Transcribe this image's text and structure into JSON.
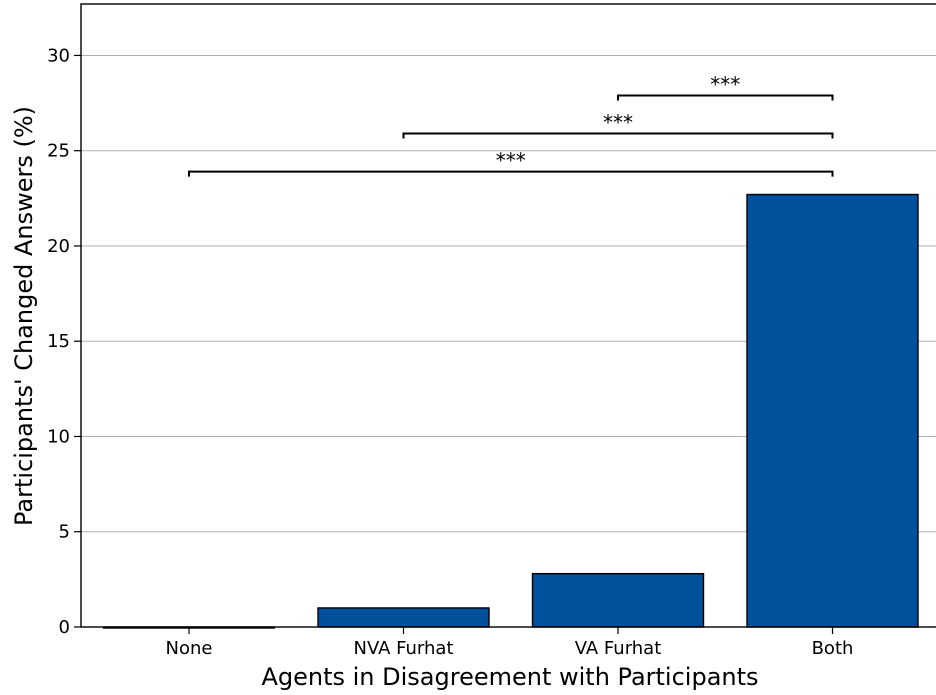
{
  "chart_data": {
    "type": "bar",
    "title": "",
    "xlabel": "Agents in Disagreement with Participants",
    "ylabel": "Participants' Changed Answers (%)",
    "categories": [
      "None",
      "NVA Furhat",
      "VA Furhat",
      "Both"
    ],
    "values": [
      0,
      1.0,
      2.8,
      22.7
    ],
    "ylim": [
      0,
      32.7
    ],
    "yticks": [
      0,
      5,
      10,
      15,
      20,
      25,
      30
    ],
    "grid": "horizontal",
    "bar_color": "#00509e",
    "significance": [
      {
        "from": "VA Furhat",
        "to": "Both",
        "y": 27.9,
        "label": "***"
      },
      {
        "from": "NVA Furhat",
        "to": "Both",
        "y": 25.9,
        "label": "***"
      },
      {
        "from": "None",
        "to": "Both",
        "y": 23.9,
        "label": "***"
      }
    ]
  }
}
